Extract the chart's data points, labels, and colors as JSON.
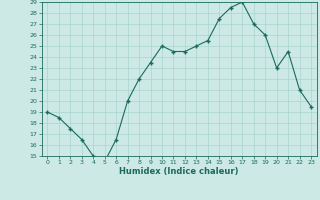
{
  "x": [
    0,
    1,
    2,
    3,
    4,
    5,
    6,
    7,
    8,
    9,
    10,
    11,
    12,
    13,
    14,
    15,
    16,
    17,
    18,
    19,
    20,
    21,
    22,
    23
  ],
  "y": [
    19.0,
    18.5,
    17.5,
    16.5,
    15.0,
    14.5,
    16.5,
    20.0,
    22.0,
    23.5,
    25.0,
    24.5,
    24.5,
    25.0,
    25.5,
    27.5,
    28.5,
    29.0,
    27.0,
    26.0,
    23.0,
    24.5,
    21.0,
    19.5
  ],
  "xlabel": "Humidex (Indice chaleur)",
  "ylim": [
    15,
    29
  ],
  "xlim": [
    -0.5,
    23.5
  ],
  "yticks": [
    15,
    16,
    17,
    18,
    19,
    20,
    21,
    22,
    23,
    24,
    25,
    26,
    27,
    28,
    29
  ],
  "xticks": [
    0,
    1,
    2,
    3,
    4,
    5,
    6,
    7,
    8,
    9,
    10,
    11,
    12,
    13,
    14,
    15,
    16,
    17,
    18,
    19,
    20,
    21,
    22,
    23
  ],
  "line_color": "#1a6b5a",
  "marker_color": "#1a6b5a",
  "bg_color": "#cce9e5",
  "grid_color": "#aad4ce",
  "text_color": "#1a6b5a",
  "xlabel_color": "#1a6b5a"
}
